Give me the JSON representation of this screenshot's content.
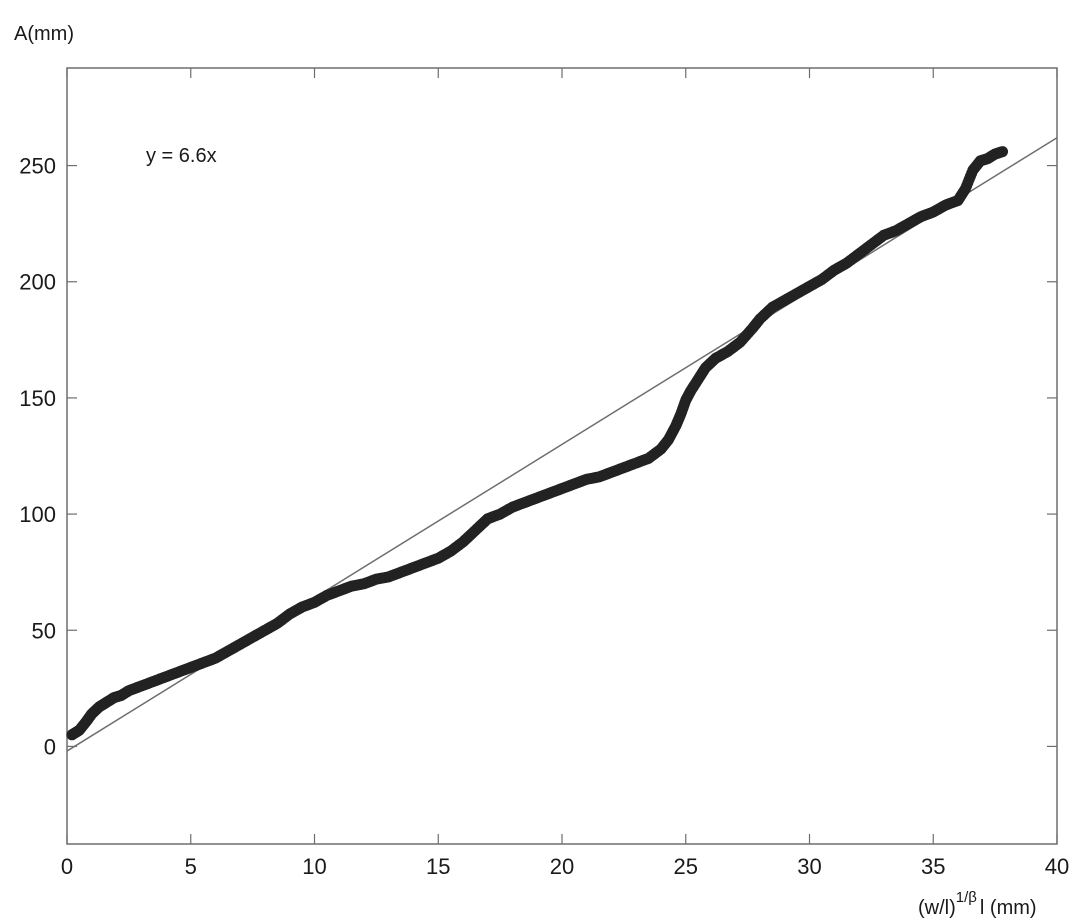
{
  "chart_data": {
    "type": "scatter",
    "ylabel": "A(mm)",
    "xlabel_main": "(w/l)",
    "xlabel_exp": "1/β",
    "xlabel_tail": "l (mm)",
    "annotation": "y = 6.6x",
    "xlim": [
      0,
      40
    ],
    "ylim": [
      -42,
      292
    ],
    "xticks": [
      0,
      5,
      10,
      15,
      20,
      25,
      30,
      35,
      40
    ],
    "yticks": [
      0,
      50,
      100,
      150,
      200,
      250
    ],
    "grid": false,
    "fit_line": {
      "slope": 6.6,
      "intercept": -2,
      "x_range": [
        0,
        40
      ]
    },
    "series": [
      {
        "marker_color": "#222222",
        "x": [
          0.2,
          0.5,
          0.8,
          1.0,
          1.3,
          1.6,
          1.9,
          2.2,
          2.5,
          3.0,
          3.5,
          4.0,
          4.5,
          5.0,
          5.5,
          6.0,
          6.5,
          7.0,
          7.5,
          8.0,
          8.5,
          9.0,
          9.5,
          10.0,
          10.5,
          11.0,
          11.5,
          12.0,
          12.5,
          13.0,
          13.5,
          14.0,
          14.5,
          15.0,
          15.5,
          16.0,
          16.3,
          16.7,
          17.0,
          17.5,
          18.0,
          18.5,
          19.0,
          19.5,
          20.0,
          20.5,
          21.0,
          21.5,
          22.0,
          22.5,
          23.0,
          23.5,
          24.0,
          24.3,
          24.6,
          24.8,
          25.0,
          25.2,
          25.5,
          25.8,
          26.2,
          26.7,
          27.2,
          27.7,
          28.0,
          28.5,
          29.0,
          29.5,
          30.0,
          30.5,
          31.0,
          31.5,
          32.0,
          32.5,
          33.0,
          33.5,
          34.0,
          34.5,
          35.0,
          35.5,
          36.0,
          36.3,
          36.6,
          36.9,
          37.2,
          37.5,
          37.8
        ],
        "y": [
          5,
          7,
          11,
          14,
          17,
          19,
          21,
          22,
          24,
          26,
          28,
          30,
          32,
          34,
          36,
          38,
          41,
          44,
          47,
          50,
          53,
          57,
          60,
          62,
          65,
          67,
          69,
          70,
          72,
          73,
          75,
          77,
          79,
          81,
          84,
          88,
          91,
          95,
          98,
          100,
          103,
          105,
          107,
          109,
          111,
          113,
          115,
          116,
          118,
          120,
          122,
          124,
          128,
          132,
          138,
          143,
          149,
          153,
          158,
          163,
          167,
          170,
          174,
          180,
          184,
          189,
          192,
          195,
          198,
          201,
          205,
          208,
          212,
          216,
          220,
          222,
          225,
          228,
          230,
          233,
          235,
          240,
          248,
          252,
          253,
          255,
          256
        ]
      }
    ]
  }
}
